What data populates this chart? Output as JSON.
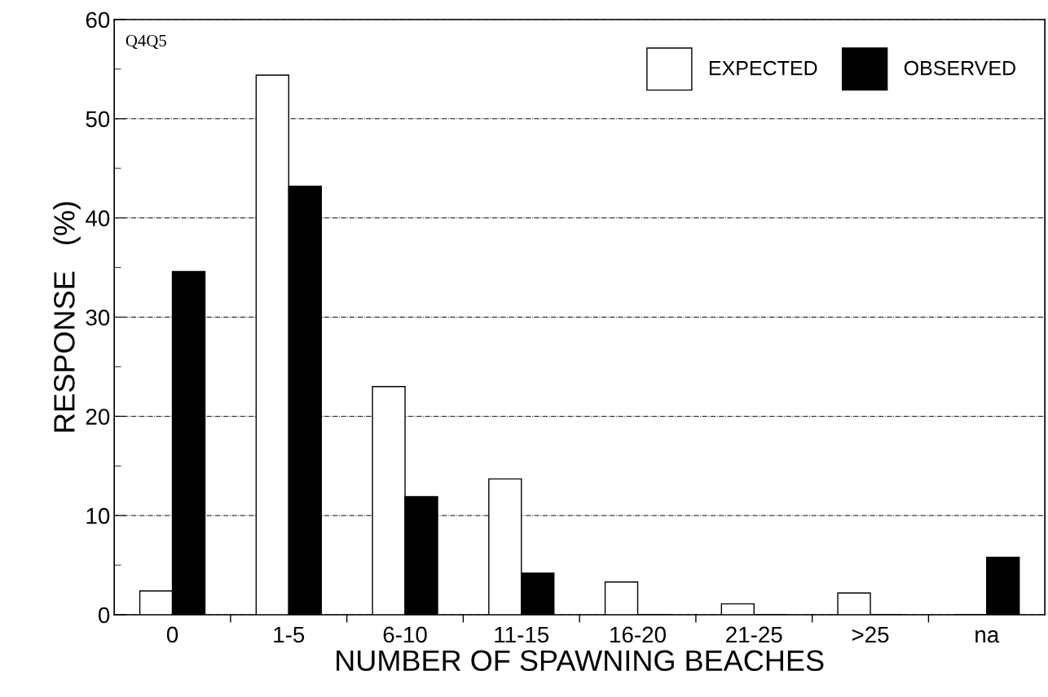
{
  "chart_data": {
    "type": "bar",
    "xlabel": "NUMBER OF SPAWNING BEACHES",
    "ylabel": "RESPONSE   (%)",
    "categories": [
      "0",
      "1-5",
      "6-10",
      "11-15",
      "16-20",
      "21-25",
      ">25",
      "na"
    ],
    "series": [
      {
        "name": "EXPECTED",
        "color": "#ffffff",
        "values": [
          2.4,
          54.4,
          23.0,
          13.7,
          3.3,
          1.1,
          2.2,
          0
        ]
      },
      {
        "name": "OBSERVED",
        "color": "#000000",
        "values": [
          34.6,
          43.2,
          11.9,
          4.2,
          0,
          0,
          0,
          5.8
        ]
      }
    ],
    "ylim": [
      0,
      60
    ],
    "yticks": [
      0,
      {
        "value": 5,
        "label": null
      },
      10,
      {
        "value": 15,
        "label": null
      },
      20,
      {
        "value": 25,
        "label": null
      },
      30,
      {
        "value": 35,
        "label": null
      },
      40,
      {
        "value": 45,
        "label": null
      },
      50,
      {
        "value": 55,
        "label": null
      },
      60
    ],
    "grid": "y",
    "legend": "top right",
    "annotations": [
      "Q4Q5"
    ]
  }
}
